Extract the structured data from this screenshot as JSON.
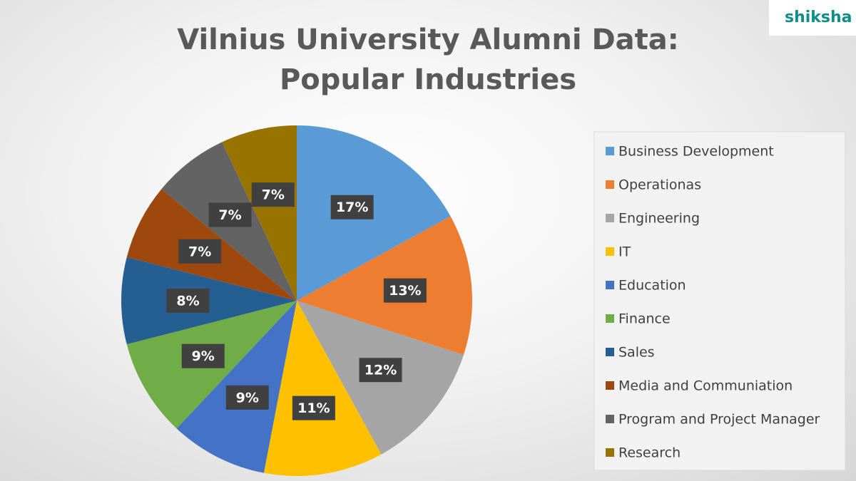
{
  "chart_data": {
    "type": "pie",
    "title": "Vilnius University Alumni Data: Popular Industries",
    "categories": [
      "Business Development",
      "Operationas",
      "Engineering",
      "IT",
      "Education",
      "Finance",
      "Sales",
      "Media and Communiation",
      "Program and Project Manager",
      "Research"
    ],
    "values": [
      17,
      13,
      12,
      11,
      9,
      9,
      8,
      7,
      7,
      7
    ],
    "value_labels": [
      "17%",
      "13%",
      "12%",
      "11%",
      "9%",
      "9%",
      "8%",
      "7%",
      "7%",
      "7%"
    ],
    "colors": [
      "#5b9bd5",
      "#ed7d31",
      "#a5a5a5",
      "#ffc000",
      "#4472c4",
      "#70ad47",
      "#255e91",
      "#9e480e",
      "#636363",
      "#997300"
    ],
    "legend": "right"
  },
  "logo": {
    "text": "shiksha"
  }
}
